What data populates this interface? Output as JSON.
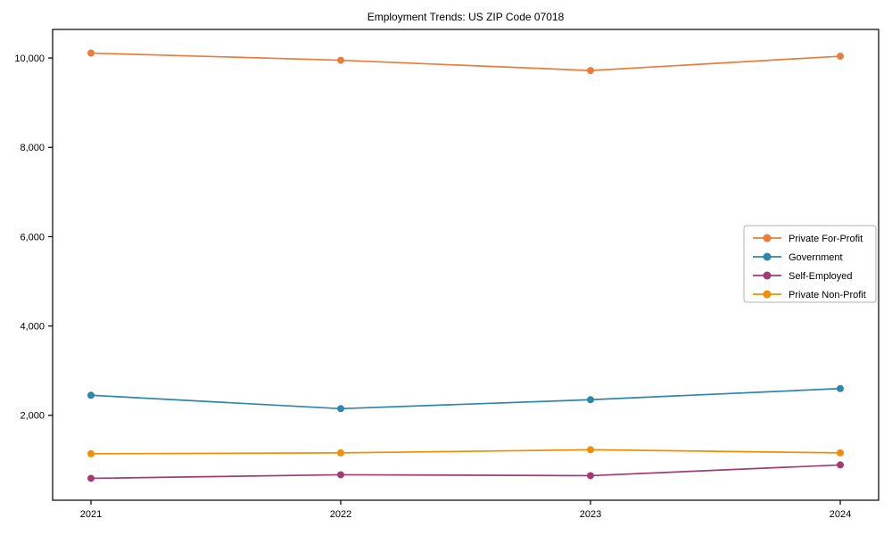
{
  "title": "Employment Trends: US ZIP Code 07018",
  "chart_data": {
    "type": "line",
    "title": "Employment Trends: US ZIP Code 07018",
    "x": [
      "2021",
      "2022",
      "2023",
      "2024"
    ],
    "series": [
      {
        "name": "Private For-Profit",
        "color": "#E87D3C",
        "values": [
          10110,
          9950,
          9720,
          10040
        ]
      },
      {
        "name": "Government",
        "color": "#2E86AB",
        "values": [
          2450,
          2150,
          2350,
          2600
        ]
      },
      {
        "name": "Self-Employed",
        "color": "#A23B72",
        "values": [
          590,
          670,
          650,
          890
        ]
      },
      {
        "name": "Private Non-Profit",
        "color": "#F18F01",
        "values": [
          1140,
          1160,
          1230,
          1160
        ]
      }
    ],
    "xlabel": "",
    "ylabel": "",
    "ylim": [
      100,
      10640
    ],
    "yticks": [
      2000,
      4000,
      6000,
      8000,
      10000
    ],
    "ytick_labels": [
      "2,000",
      "4,000",
      "6,000",
      "8,000",
      "10,000"
    ],
    "xtick_labels": [
      "2021",
      "2022",
      "2023",
      "2024"
    ],
    "legend_position": "center right",
    "grid": false,
    "marker": "circle",
    "axis_color": "#000000",
    "legend_border_color": "#b0b0b0",
    "background_color": "#ffffff"
  }
}
